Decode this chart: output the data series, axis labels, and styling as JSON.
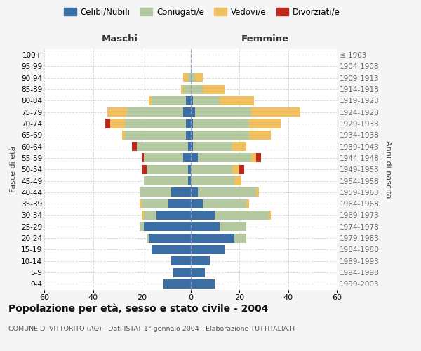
{
  "age_groups": [
    "0-4",
    "5-9",
    "10-14",
    "15-19",
    "20-24",
    "25-29",
    "30-34",
    "35-39",
    "40-44",
    "45-49",
    "50-54",
    "55-59",
    "60-64",
    "65-69",
    "70-74",
    "75-79",
    "80-84",
    "85-89",
    "90-94",
    "95-99",
    "100+"
  ],
  "birth_years": [
    "1999-2003",
    "1994-1998",
    "1989-1993",
    "1984-1988",
    "1979-1983",
    "1974-1978",
    "1969-1973",
    "1964-1968",
    "1959-1963",
    "1954-1958",
    "1949-1953",
    "1944-1948",
    "1939-1943",
    "1934-1938",
    "1929-1933",
    "1924-1928",
    "1919-1923",
    "1914-1918",
    "1909-1913",
    "1904-1908",
    "≤ 1903"
  ],
  "colors": {
    "celibe": "#3a6ea5",
    "coniugato": "#b5c9a0",
    "vedovo": "#f0c060",
    "divorziato": "#c0281e"
  },
  "male": {
    "celibe": [
      11,
      7,
      8,
      16,
      17,
      19,
      14,
      9,
      8,
      1,
      1,
      3,
      1,
      2,
      2,
      3,
      2,
      0,
      0,
      0,
      0
    ],
    "coniugato": [
      0,
      0,
      0,
      0,
      1,
      2,
      5,
      11,
      13,
      18,
      17,
      16,
      21,
      25,
      25,
      23,
      14,
      3,
      1,
      0,
      0
    ],
    "vedovo": [
      0,
      0,
      0,
      0,
      0,
      0,
      1,
      1,
      0,
      0,
      0,
      0,
      0,
      1,
      6,
      8,
      1,
      1,
      2,
      0,
      0
    ],
    "divorziato": [
      0,
      0,
      0,
      0,
      0,
      0,
      0,
      0,
      0,
      0,
      2,
      1,
      2,
      0,
      2,
      0,
      0,
      0,
      0,
      0,
      0
    ]
  },
  "female": {
    "nubile": [
      10,
      6,
      8,
      14,
      18,
      12,
      10,
      5,
      3,
      0,
      0,
      3,
      1,
      1,
      1,
      2,
      1,
      0,
      0,
      0,
      0
    ],
    "coniugata": [
      0,
      0,
      0,
      0,
      5,
      11,
      22,
      18,
      24,
      18,
      17,
      22,
      16,
      23,
      23,
      23,
      11,
      5,
      2,
      0,
      0
    ],
    "vedova": [
      0,
      0,
      0,
      0,
      0,
      0,
      1,
      1,
      1,
      3,
      3,
      2,
      6,
      9,
      13,
      20,
      14,
      9,
      3,
      0,
      0
    ],
    "divorziata": [
      0,
      0,
      0,
      0,
      0,
      0,
      0,
      0,
      0,
      0,
      2,
      2,
      0,
      0,
      0,
      0,
      0,
      0,
      0,
      0,
      0
    ]
  },
  "title": "Popolazione per età, sesso e stato civile - 2004",
  "subtitle": "COMUNE DI VITTORITO (AQ) - Dati ISTAT 1° gennaio 2004 - Elaborazione TUTTITALIA.IT",
  "xlabel_left": "Maschi",
  "xlabel_right": "Femmine",
  "ylabel_left": "Fasce di età",
  "ylabel_right": "Anni di nascita",
  "xlim": 60,
  "legend_labels": [
    "Celibi/Nubili",
    "Coniugati/e",
    "Vedovi/e",
    "Divorziati/e"
  ],
  "bg_color": "#f5f5f5",
  "plot_bg_color": "#ffffff",
  "grid_color": "#cccccc"
}
